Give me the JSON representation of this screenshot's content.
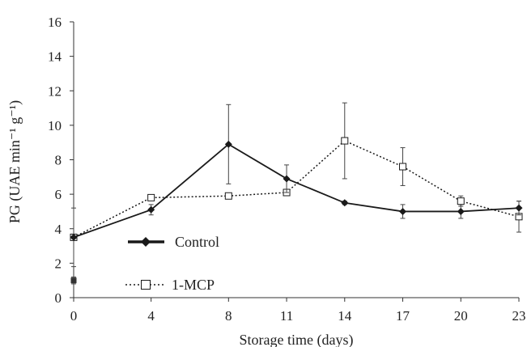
{
  "chart_data": {
    "type": "line",
    "title": "",
    "xlabel": "Storage time (days)",
    "ylabel": "PG (UAE min⁻¹ g⁻¹)",
    "x": [
      0,
      4,
      8,
      11,
      14,
      17,
      20,
      23
    ],
    "x_tick_labels": [
      "0",
      "4",
      "8",
      "11",
      "14",
      "17",
      "20",
      "23"
    ],
    "y_ticks": [
      0,
      2,
      4,
      6,
      8,
      10,
      12,
      14,
      16
    ],
    "ylim": [
      0,
      16
    ],
    "grid": false,
    "legend_position": "lower-left",
    "series": [
      {
        "name": "Control",
        "style": "solid",
        "marker": "filled-diamond",
        "color": "#1a1a1a",
        "values": [
          3.5,
          5.1,
          8.9,
          6.9,
          5.5,
          5.0,
          5.0,
          5.2
        ],
        "errors": [
          1.7,
          0.3,
          2.3,
          0.8,
          0.1,
          0.4,
          0.4,
          0.4
        ]
      },
      {
        "name": "1-MCP",
        "style": "dotted",
        "marker": "open-square",
        "color": "#1a1a1a",
        "values": [
          3.5,
          5.8,
          5.9,
          6.1,
          9.1,
          7.6,
          5.6,
          4.7
        ],
        "errors": [
          0.0,
          0.15,
          0.1,
          0.1,
          2.2,
          1.1,
          0.3,
          0.9
        ]
      }
    ],
    "extra_points": [
      {
        "x": 0,
        "y": 1.0,
        "marker": "filled-square",
        "error": 0.2
      }
    ]
  }
}
